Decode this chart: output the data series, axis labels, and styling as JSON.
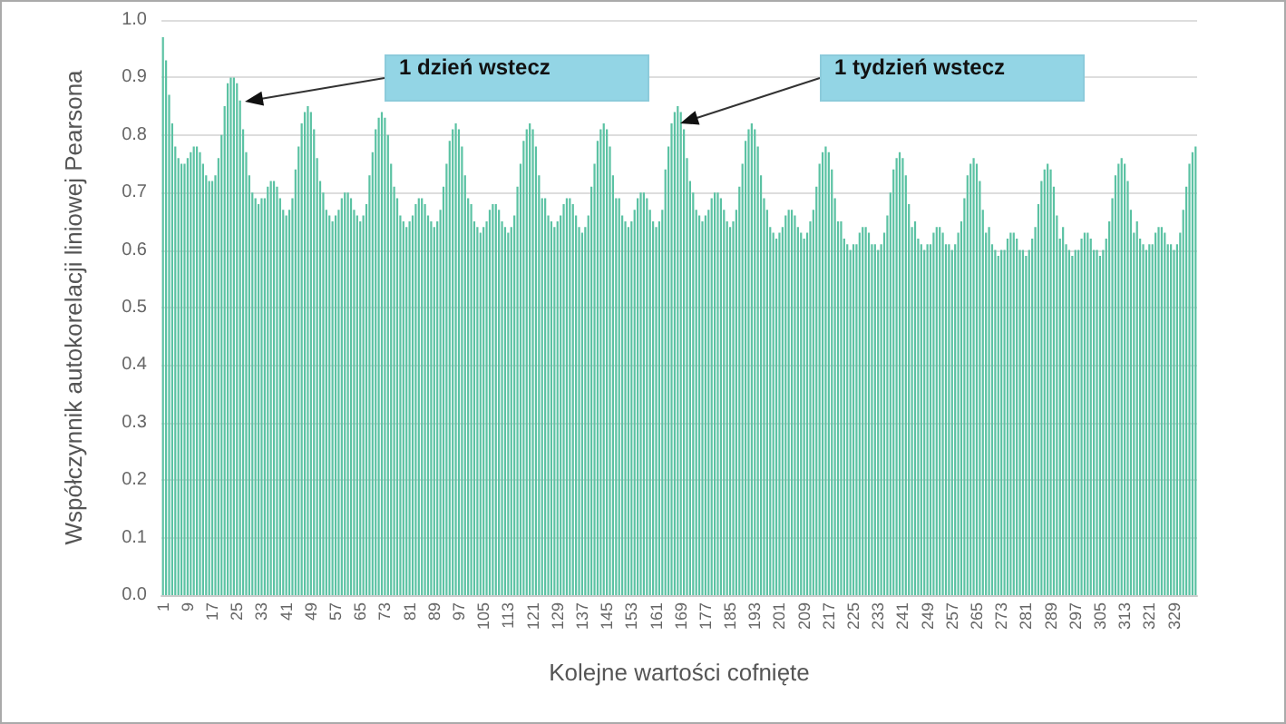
{
  "chart_data": {
    "type": "bar",
    "xlabel": "Kolejne wartości cofnięte",
    "ylabel": "Współczynnik autokorelacji liniowej Pearsona",
    "annotations": [
      "1 dzień wstecz",
      "1 tydzień wstecz"
    ],
    "categories": [
      "1",
      null,
      null,
      null,
      null,
      null,
      null,
      null,
      "9",
      null,
      null,
      null,
      null,
      null,
      null,
      null,
      "17",
      null,
      null,
      null,
      null,
      null,
      null,
      null,
      "25",
      null,
      null,
      null,
      null,
      null,
      null,
      null,
      "33",
      null,
      null,
      null,
      null,
      null,
      null,
      null,
      "41",
      null,
      null,
      null,
      null,
      null,
      null,
      null,
      "49",
      null,
      null,
      null,
      null,
      null,
      null,
      null,
      "57",
      null,
      null,
      null,
      null,
      null,
      null,
      null,
      "65",
      null,
      null,
      null,
      null,
      null,
      null,
      null,
      "73",
      null,
      null,
      null,
      null,
      null,
      null,
      null,
      "81",
      null,
      null,
      null,
      null,
      null,
      null,
      null,
      "89",
      null,
      null,
      null,
      null,
      null,
      null,
      null,
      "97",
      null,
      null,
      null,
      null,
      null,
      null,
      null,
      "105",
      null,
      null,
      null,
      null,
      null,
      null,
      null,
      "113",
      null,
      null,
      null,
      null,
      null,
      null,
      null,
      "121",
      null,
      null,
      null,
      null,
      null,
      null,
      null,
      "129",
      null,
      null,
      null,
      null,
      null,
      null,
      null,
      "137",
      null,
      null,
      null,
      null,
      null,
      null,
      null,
      "145",
      null,
      null,
      null,
      null,
      null,
      null,
      null,
      "153",
      null,
      null,
      null,
      null,
      null,
      null,
      null,
      "161",
      null,
      null,
      null,
      null,
      null,
      null,
      null,
      "169",
      null,
      null,
      null,
      null,
      null,
      null,
      null,
      "177",
      null,
      null,
      null,
      null,
      null,
      null,
      null,
      "185",
      null,
      null,
      null,
      null,
      null,
      null,
      null,
      "193",
      null,
      null,
      null,
      null,
      null,
      null,
      null,
      "201",
      null,
      null,
      null,
      null,
      null,
      null,
      null,
      "209",
      null,
      null,
      null,
      null,
      null,
      null,
      null,
      "217",
      null,
      null,
      null,
      null,
      null,
      null,
      null,
      "225",
      null,
      null,
      null,
      null,
      null,
      null,
      null,
      "233",
      null,
      null,
      null,
      null,
      null,
      null,
      null,
      "241",
      null,
      null,
      null,
      null,
      null,
      null,
      null,
      "249",
      null,
      null,
      null,
      null,
      null,
      null,
      null,
      "257",
      null,
      null,
      null,
      null,
      null,
      null,
      null,
      "265",
      null,
      null,
      null,
      null,
      null,
      null,
      null,
      "273",
      null,
      null,
      null,
      null,
      null,
      null,
      null,
      "281",
      null,
      null,
      null,
      null,
      null,
      null,
      null,
      "289",
      null,
      null,
      null,
      null,
      null,
      null,
      null,
      "297",
      null,
      null,
      null,
      null,
      null,
      null,
      null,
      "305",
      null,
      null,
      null,
      null,
      null,
      null,
      null,
      "313",
      null,
      null,
      null,
      null,
      null,
      null,
      null,
      "321",
      null,
      null,
      null,
      null,
      null,
      null,
      null,
      "329",
      null,
      null,
      null,
      null,
      null,
      null,
      null
    ],
    "values": [
      0.97,
      0.93,
      0.87,
      0.82,
      0.78,
      0.76,
      0.75,
      0.75,
      0.76,
      0.77,
      0.78,
      0.78,
      0.77,
      0.75,
      0.73,
      0.72,
      0.72,
      0.73,
      0.76,
      0.8,
      0.85,
      0.89,
      0.9,
      0.9,
      0.89,
      0.86,
      0.81,
      0.77,
      0.73,
      0.7,
      0.69,
      0.68,
      0.69,
      0.69,
      0.71,
      0.72,
      0.72,
      0.71,
      0.69,
      0.67,
      0.66,
      0.67,
      0.69,
      0.74,
      0.78,
      0.82,
      0.84,
      0.85,
      0.84,
      0.81,
      0.76,
      0.72,
      0.7,
      0.67,
      0.66,
      0.65,
      0.66,
      0.67,
      0.69,
      0.7,
      0.7,
      0.69,
      0.67,
      0.66,
      0.65,
      0.66,
      0.68,
      0.73,
      0.77,
      0.81,
      0.83,
      0.84,
      0.83,
      0.8,
      0.75,
      0.71,
      0.69,
      0.66,
      0.65,
      0.64,
      0.65,
      0.66,
      0.68,
      0.69,
      0.69,
      0.68,
      0.66,
      0.65,
      0.64,
      0.65,
      0.67,
      0.71,
      0.75,
      0.79,
      0.81,
      0.82,
      0.81,
      0.78,
      0.73,
      0.69,
      0.68,
      0.65,
      0.64,
      0.63,
      0.64,
      0.65,
      0.67,
      0.68,
      0.68,
      0.67,
      0.65,
      0.64,
      0.63,
      0.64,
      0.66,
      0.71,
      0.75,
      0.79,
      0.81,
      0.82,
      0.81,
      0.78,
      0.73,
      0.69,
      0.69,
      0.66,
      0.65,
      0.64,
      0.65,
      0.66,
      0.68,
      0.69,
      0.69,
      0.68,
      0.66,
      0.64,
      0.63,
      0.64,
      0.66,
      0.71,
      0.75,
      0.79,
      0.81,
      0.82,
      0.81,
      0.78,
      0.73,
      0.69,
      0.69,
      0.66,
      0.65,
      0.64,
      0.65,
      0.67,
      0.69,
      0.7,
      0.7,
      0.69,
      0.67,
      0.65,
      0.64,
      0.65,
      0.67,
      0.74,
      0.78,
      0.82,
      0.84,
      0.85,
      0.84,
      0.81,
      0.76,
      0.72,
      0.7,
      0.67,
      0.66,
      0.65,
      0.66,
      0.67,
      0.69,
      0.7,
      0.7,
      0.69,
      0.67,
      0.65,
      0.64,
      0.65,
      0.67,
      0.71,
      0.75,
      0.79,
      0.81,
      0.82,
      0.81,
      0.78,
      0.73,
      0.69,
      0.67,
      0.64,
      0.63,
      0.62,
      0.63,
      0.64,
      0.66,
      0.67,
      0.67,
      0.66,
      0.64,
      0.63,
      0.62,
      0.63,
      0.65,
      0.67,
      0.71,
      0.75,
      0.77,
      0.78,
      0.77,
      0.74,
      0.69,
      0.65,
      0.65,
      0.62,
      0.61,
      0.6,
      0.61,
      0.61,
      0.63,
      0.64,
      0.64,
      0.63,
      0.61,
      0.61,
      0.6,
      0.61,
      0.63,
      0.66,
      0.7,
      0.74,
      0.76,
      0.77,
      0.76,
      0.73,
      0.68,
      0.64,
      0.65,
      0.62,
      0.61,
      0.6,
      0.61,
      0.61,
      0.63,
      0.64,
      0.64,
      0.63,
      0.61,
      0.61,
      0.6,
      0.61,
      0.63,
      0.65,
      0.69,
      0.73,
      0.75,
      0.76,
      0.75,
      0.72,
      0.67,
      0.63,
      0.64,
      0.61,
      0.6,
      0.59,
      0.6,
      0.6,
      0.62,
      0.63,
      0.63,
      0.62,
      0.6,
      0.6,
      0.59,
      0.6,
      0.62,
      0.64,
      0.68,
      0.72,
      0.74,
      0.75,
      0.74,
      0.71,
      0.66,
      0.62,
      0.64,
      0.61,
      0.6,
      0.59,
      0.6,
      0.6,
      0.62,
      0.63,
      0.63,
      0.62,
      0.6,
      0.6,
      0.59,
      0.6,
      0.62,
      0.65,
      0.69,
      0.73,
      0.75,
      0.76,
      0.75,
      0.72,
      0.67,
      0.63,
      0.65,
      0.62,
      0.61,
      0.6,
      0.61,
      0.61,
      0.63,
      0.64,
      0.64,
      0.63,
      0.61,
      0.61,
      0.6,
      0.61,
      0.63,
      0.67,
      0.71,
      0.75,
      0.77,
      0.78
    ],
    "color": "#5bc2a3",
    "ylim": [
      0,
      1
    ],
    "yticks": [
      {
        "value": 0,
        "label": "0.0"
      },
      0.1,
      0.2,
      0.3,
      0.4,
      0.5,
      0.6,
      0.7,
      0.8,
      0.9,
      {
        "value": 1,
        "label": "1.0"
      }
    ],
    "grid": "y"
  }
}
